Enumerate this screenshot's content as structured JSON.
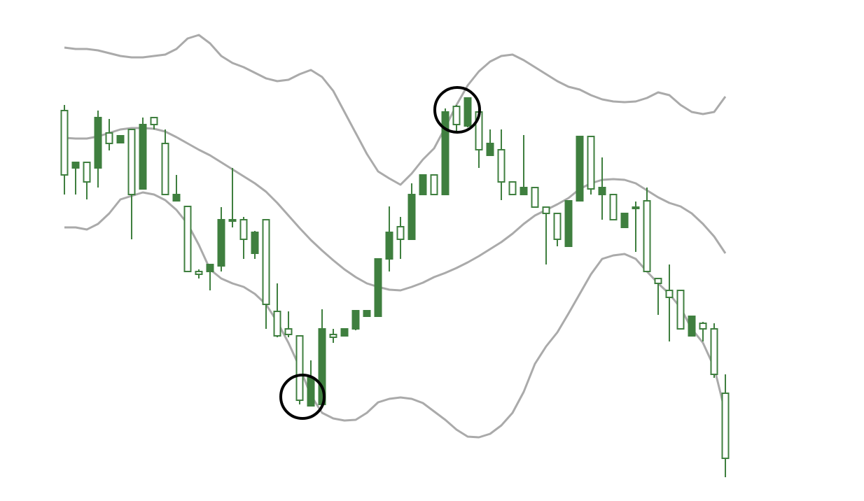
{
  "chart_data": {
    "type": "candlestick",
    "ylim": [
      0,
      700
    ],
    "up_color": "#3f7f3f",
    "down_color": "#3f7f3f",
    "band_color": "#aaaaaa",
    "open": [
      542,
      460,
      468,
      460,
      510,
      496,
      515,
      430,
      532,
      495,
      413,
      405,
      312,
      312,
      320,
      386,
      386,
      338,
      386,
      255,
      230,
      220,
      120,
      122,
      222,
      220,
      230,
      248,
      248,
      330,
      376,
      358,
      422,
      450,
      422,
      548,
      520,
      540,
      478,
      486,
      440,
      422,
      432,
      404,
      395,
      348,
      413,
      505,
      422,
      422,
      375,
      404,
      413,
      302,
      285,
      285,
      220,
      238,
      230,
      138
    ],
    "high": [
      550,
      468,
      468,
      542,
      530,
      506,
      515,
      532,
      532,
      515,
      450,
      405,
      315,
      322,
      404,
      460,
      390,
      370,
      386,
      295,
      255,
      220,
      185,
      258,
      230,
      230,
      256,
      256,
      330,
      405,
      390,
      438,
      450,
      450,
      545,
      550,
      560,
      545,
      515,
      515,
      440,
      507,
      432,
      404,
      395,
      413,
      505,
      505,
      475,
      422,
      395,
      412,
      432,
      302,
      322,
      285,
      248,
      240,
      238,
      165
    ],
    "low": [
      422,
      422,
      415,
      432,
      485,
      496,
      358,
      430,
      515,
      422,
      413,
      312,
      302,
      285,
      312,
      375,
      330,
      330,
      230,
      218,
      218,
      122,
      120,
      122,
      210,
      220,
      228,
      248,
      248,
      312,
      330,
      358,
      422,
      422,
      422,
      512,
      518,
      460,
      478,
      414,
      422,
      422,
      404,
      322,
      348,
      348,
      412,
      422,
      386,
      386,
      375,
      340,
      312,
      250,
      212,
      230,
      220,
      212,
      160,
      18
    ],
    "close": [
      450,
      468,
      440,
      532,
      495,
      506,
      422,
      522,
      522,
      422,
      422,
      312,
      308,
      322,
      386,
      384,
      358,
      368,
      265,
      220,
      222,
      128,
      160,
      230,
      218,
      230,
      256,
      256,
      330,
      368,
      358,
      422,
      450,
      422,
      540,
      522,
      560,
      486,
      495,
      440,
      422,
      432,
      404,
      395,
      358,
      413,
      505,
      430,
      432,
      386,
      395,
      402,
      312,
      295,
      275,
      230,
      248,
      230,
      165,
      45
    ],
    "bands": {
      "upper": [
        632,
        630,
        630,
        628,
        624,
        620,
        618,
        618,
        620,
        622,
        630,
        645,
        650,
        638,
        620,
        610,
        604,
        596,
        588,
        584,
        586,
        594,
        600,
        590,
        570,
        540,
        510,
        480,
        455,
        445,
        436,
        452,
        472,
        488,
        518,
        550,
        578,
        598,
        612,
        620,
        622,
        614,
        604,
        594,
        584,
        576,
        572,
        564,
        558,
        555,
        554,
        555,
        560,
        568,
        564,
        550,
        540,
        537,
        540,
        562
      ],
      "middle": [
        503,
        502,
        502,
        505,
        510,
        515,
        517,
        517,
        516,
        512,
        504,
        495,
        486,
        478,
        468,
        458,
        448,
        438,
        426,
        410,
        392,
        374,
        357,
        342,
        328,
        315,
        304,
        295,
        290,
        286,
        285,
        290,
        296,
        304,
        310,
        317,
        325,
        334,
        344,
        354,
        366,
        380,
        392,
        400,
        408,
        417,
        430,
        438,
        443,
        444,
        443,
        438,
        428,
        418,
        410,
        405,
        395,
        380,
        362,
        338
      ],
      "lower": [
        375,
        375,
        372,
        380,
        395,
        415,
        420,
        425,
        422,
        414,
        400,
        380,
        350,
        315,
        302,
        295,
        290,
        280,
        265,
        240,
        210,
        175,
        135,
        110,
        102,
        99,
        100,
        110,
        125,
        130,
        132,
        130,
        124,
        112,
        100,
        86,
        76,
        75,
        80,
        92,
        110,
        140,
        180,
        205,
        225,
        252,
        280,
        308,
        330,
        335,
        337,
        330,
        312,
        295,
        280,
        260,
        230,
        210,
        175,
        110
      ]
    }
  }
}
